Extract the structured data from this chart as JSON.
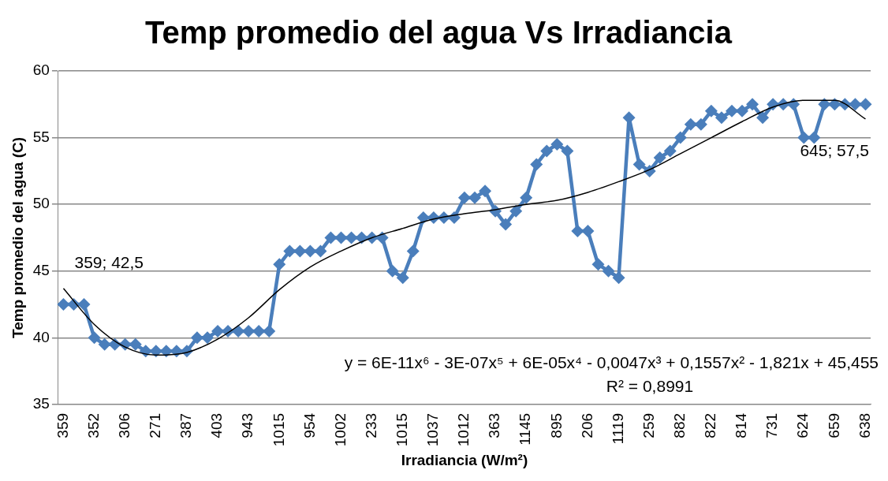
{
  "chart_data": {
    "type": "line",
    "title": "Temp promedio del agua Vs Irradiancia",
    "xlabel": "Irradiancia (W/m²)",
    "ylabel": "Temp promedio del agua (C)",
    "categories": [
      "359",
      null,
      null,
      "352",
      null,
      null,
      "306",
      null,
      null,
      "271",
      null,
      null,
      "387",
      null,
      null,
      "403",
      null,
      null,
      "943",
      null,
      null,
      "1015",
      null,
      null,
      "954",
      null,
      null,
      "1002",
      null,
      null,
      "233",
      null,
      null,
      "1015",
      null,
      null,
      "1037",
      null,
      null,
      "1012",
      null,
      null,
      "363",
      null,
      null,
      "1145",
      null,
      null,
      "895",
      null,
      null,
      "206",
      null,
      null,
      "1119",
      null,
      null,
      "259",
      null,
      null,
      "882",
      null,
      null,
      "822",
      null,
      null,
      "814",
      null,
      null,
      "731",
      null,
      null,
      "624",
      null,
      null,
      "659",
      null,
      null,
      "638"
    ],
    "series": [
      {
        "color": "#4a7ebb",
        "values": [
          42.5,
          42.5,
          42.5,
          40,
          39.5,
          39.5,
          39.5,
          39.5,
          39,
          39,
          39,
          39,
          39,
          40,
          40,
          40.5,
          40.5,
          40.5,
          40.5,
          40.5,
          40.5,
          45.5,
          46.5,
          46.5,
          46.5,
          46.5,
          47.5,
          47.5,
          47.5,
          47.5,
          47.5,
          47.5,
          45,
          44.5,
          46.5,
          49,
          49,
          49,
          49,
          50.5,
          50.5,
          51,
          49.5,
          48.5,
          49.5,
          50.5,
          53,
          54,
          54.5,
          54,
          48,
          48,
          45.5,
          45,
          44.5,
          56.5,
          53,
          52.5,
          53.5,
          54,
          55,
          56,
          56,
          57,
          56.5,
          57,
          57,
          57.5,
          56.5,
          57.5,
          57.5,
          57.5,
          55,
          55,
          57.5,
          57.5,
          57.5,
          57.5,
          57.5
        ]
      },
      {
        "type": "line",
        "marker": "none",
        "color": "#000000",
        "values": [
          43.7,
          null,
          null,
          41.0,
          null,
          null,
          39.3,
          null,
          null,
          38.7,
          null,
          null,
          38.9,
          null,
          null,
          39.9,
          null,
          null,
          41.5,
          null,
          null,
          43.6,
          null,
          null,
          45.3,
          null,
          null,
          46.5,
          null,
          null,
          47.5,
          null,
          null,
          48.2,
          null,
          null,
          48.9,
          null,
          null,
          49.3,
          null,
          null,
          49.6,
          null,
          null,
          50.0,
          null,
          null,
          50.3,
          null,
          null,
          50.9,
          null,
          null,
          51.7,
          null,
          null,
          52.6,
          null,
          null,
          53.8,
          null,
          null,
          55.0,
          null,
          null,
          56.2,
          null,
          null,
          57.3,
          null,
          null,
          57.8,
          null,
          null,
          57.8,
          null,
          null,
          56.4
        ]
      }
    ],
    "ylim": [
      35,
      60
    ],
    "yticks": [
      35,
      40,
      45,
      50,
      55,
      60
    ],
    "grid": "y",
    "legend": false,
    "marker": "diamond",
    "annotations": [
      {
        "text": "359; 42,5",
        "x": "359",
        "y": 42.5
      },
      {
        "text": "645; 57,5",
        "y": 57.5
      },
      "y = 6E-11x⁶ - 3E-07x⁵ + 6E-05x⁴ - 0,0047x³ + 0,1557x² - 1,821x + 45,455",
      "R² = 0,8991"
    ]
  }
}
